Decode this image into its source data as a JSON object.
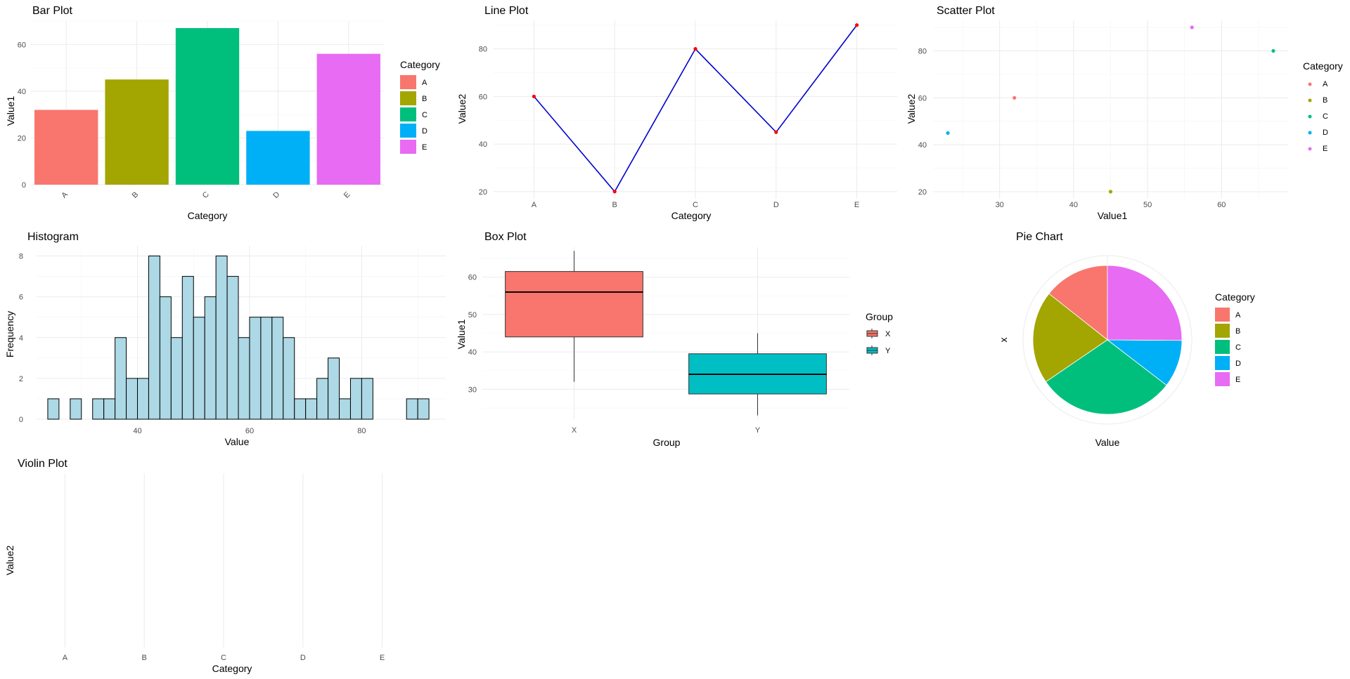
{
  "chart_data": [
    {
      "id": "bar",
      "type": "bar",
      "title": "Bar Plot",
      "xlabel": "Category",
      "ylabel": "Value1",
      "categories": [
        "A",
        "B",
        "C",
        "D",
        "E"
      ],
      "values": [
        32,
        45,
        67,
        23,
        56
      ],
      "colors": [
        "#F8766D",
        "#A3A500",
        "#00BF7D",
        "#00B0F6",
        "#E76BF3"
      ],
      "ylim": [
        0,
        70
      ],
      "yticks": [
        0,
        20,
        40,
        60
      ],
      "legend": {
        "title": "Category",
        "entries": [
          "A",
          "B",
          "C",
          "D",
          "E"
        ],
        "placement": "right"
      }
    },
    {
      "id": "line",
      "type": "line",
      "title": "Line Plot",
      "xlabel": "Category",
      "ylabel": "Value2",
      "categories": [
        "A",
        "B",
        "C",
        "D",
        "E"
      ],
      "values": [
        60,
        20,
        80,
        45,
        90
      ],
      "line_color": "#0000CD",
      "point_color": "#FF0000",
      "ylim": [
        17,
        92
      ],
      "yticks": [
        20,
        40,
        60,
        80
      ]
    },
    {
      "id": "scatter",
      "type": "scatter",
      "title": "Scatter Plot",
      "xlabel": "Value1",
      "ylabel": "Value2",
      "points": [
        {
          "category": "A",
          "x": 32,
          "y": 60
        },
        {
          "category": "B",
          "x": 45,
          "y": 20
        },
        {
          "category": "C",
          "x": 67,
          "y": 80
        },
        {
          "category": "D",
          "x": 23,
          "y": 45
        },
        {
          "category": "E",
          "x": 56,
          "y": 90
        }
      ],
      "colors": [
        "#F8766D",
        "#A3A500",
        "#00BF7D",
        "#00B0F6",
        "#E76BF3"
      ],
      "xlim": [
        21,
        69
      ],
      "ylim": [
        17,
        93
      ],
      "xticks": [
        30,
        40,
        50,
        60
      ],
      "yticks": [
        20,
        40,
        60,
        80
      ],
      "legend": {
        "title": "Category",
        "entries": [
          "A",
          "B",
          "C",
          "D",
          "E"
        ],
        "placement": "right"
      }
    },
    {
      "id": "hist",
      "type": "bar",
      "title": "Histogram",
      "xlabel": "Value",
      "ylabel": "Frequency",
      "bin_start": 24,
      "bin_width": 2,
      "counts": [
        1,
        0,
        1,
        0,
        1,
        1,
        4,
        2,
        2,
        8,
        6,
        4,
        7,
        5,
        6,
        8,
        7,
        4,
        5,
        5,
        5,
        4,
        1,
        1,
        2,
        3,
        1,
        2,
        2,
        0,
        0,
        0,
        1,
        1
      ],
      "fill": "#ADD8E6",
      "xlim": [
        22,
        95
      ],
      "ylim": [
        0,
        8.5
      ],
      "xticks": [
        40,
        60,
        80
      ],
      "yticks": [
        0,
        2,
        4,
        6,
        8
      ]
    },
    {
      "id": "box",
      "type": "box",
      "title": "Box Plot",
      "xlabel": "Group",
      "ylabel": "Value1",
      "groups": [
        {
          "name": "X",
          "whisker_low": 32,
          "q1": 44,
          "median": 56,
          "q3": 61.5,
          "whisker_high": 67,
          "color": "#F8766D"
        },
        {
          "name": "Y",
          "whisker_low": 23,
          "q1": 28.75,
          "median": 34,
          "q3": 39.5,
          "whisker_high": 45,
          "color": "#00BFC4"
        }
      ],
      "ylim": [
        22,
        68
      ],
      "yticks": [
        30,
        40,
        50,
        60
      ],
      "legend": {
        "title": "Group",
        "entries": [
          "X",
          "Y"
        ],
        "placement": "right"
      }
    },
    {
      "id": "pie",
      "type": "pie",
      "title": "Pie Chart",
      "xlabel": "Value",
      "ylabel": "x",
      "slices": [
        {
          "label": "A",
          "value": 32,
          "color": "#F8766D"
        },
        {
          "label": "B",
          "value": 45,
          "color": "#A3A500"
        },
        {
          "label": "C",
          "value": 67,
          "color": "#00BF7D"
        },
        {
          "label": "D",
          "value": 23,
          "color": "#00B0F6"
        },
        {
          "label": "E",
          "value": 56,
          "color": "#E76BF3"
        }
      ],
      "legend": {
        "title": "Category",
        "entries": [
          "A",
          "B",
          "C",
          "D",
          "E"
        ],
        "placement": "right"
      }
    },
    {
      "id": "violin",
      "type": "violin",
      "title": "Violin Plot",
      "xlabel": "Category",
      "ylabel": "Value2",
      "categories": [
        "A",
        "B",
        "C",
        "D",
        "E"
      ]
    }
  ]
}
